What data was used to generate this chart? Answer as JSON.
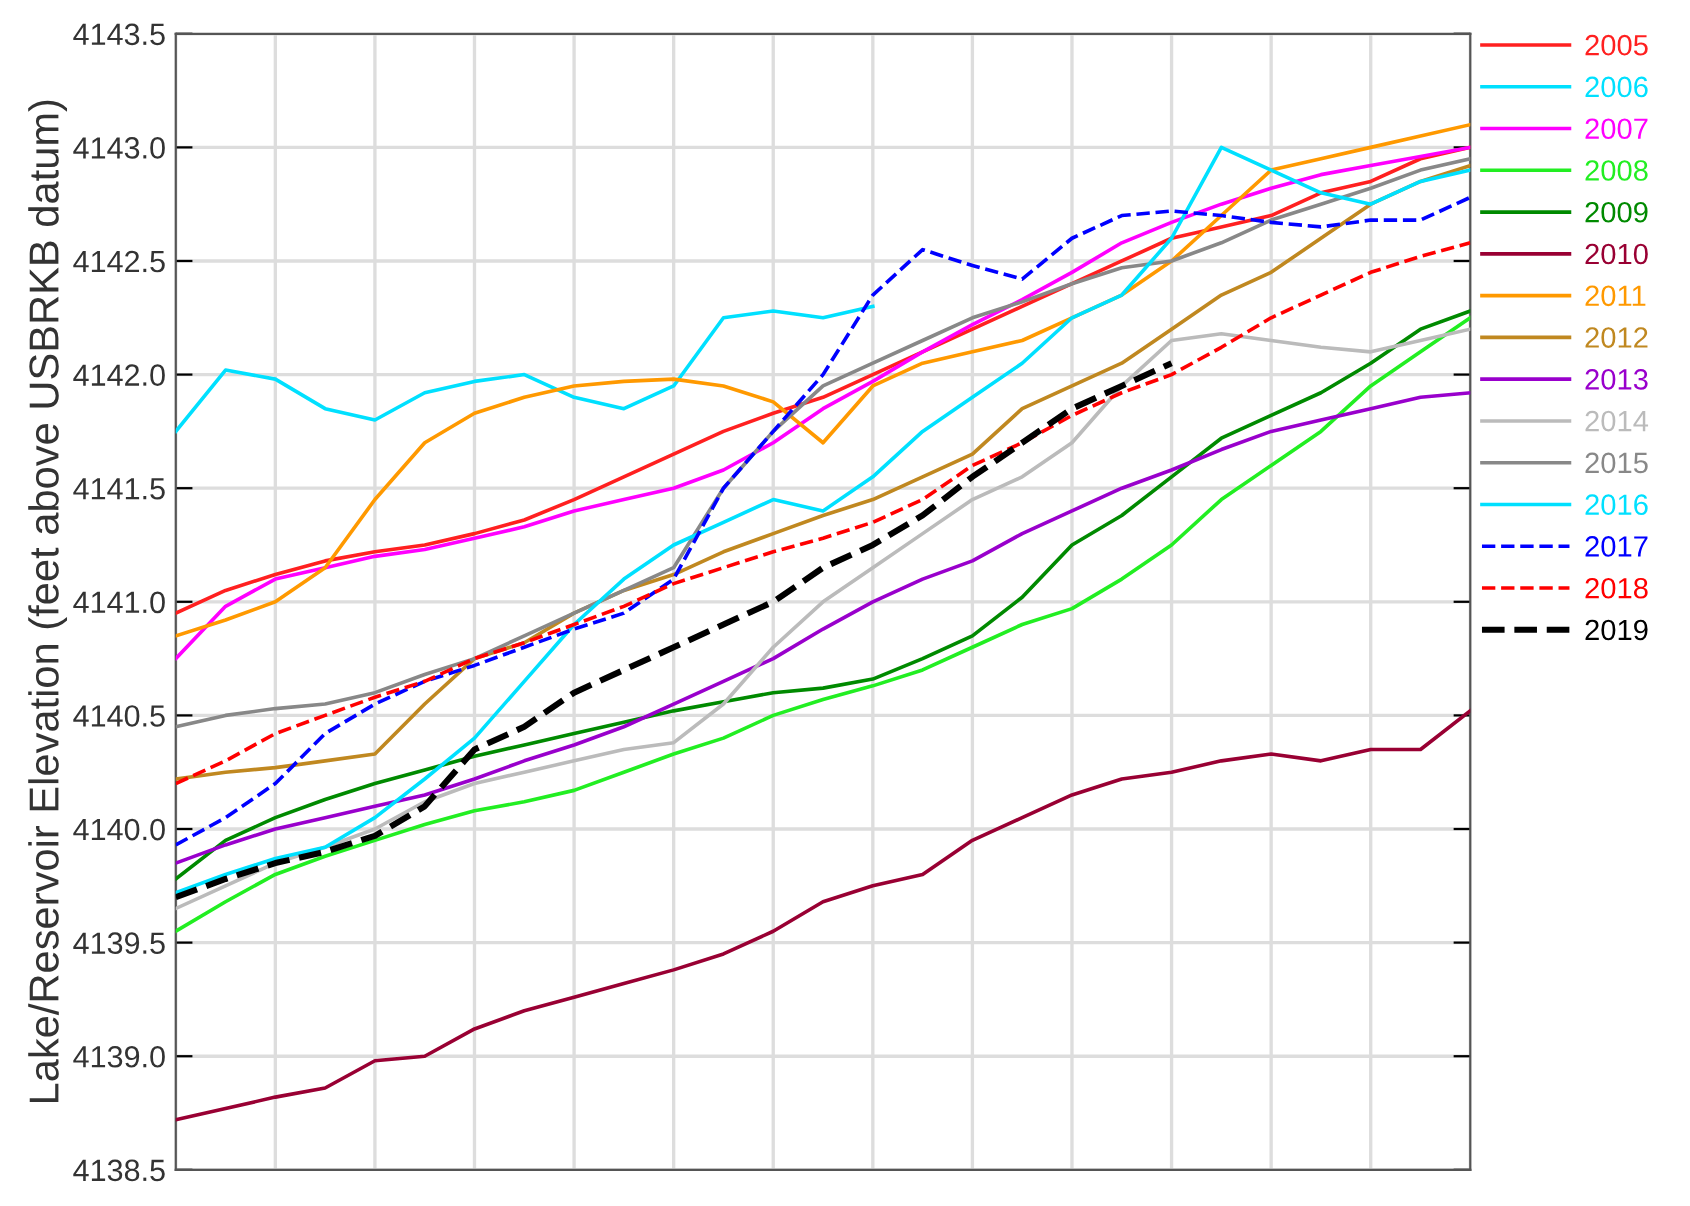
{
  "chart_data": {
    "type": "line",
    "ylabel": "Lake/Reservoir Elevation (feet above USBRKB datum)",
    "categories": [
      null,
      null,
      null,
      null,
      null,
      null,
      null,
      null,
      null,
      null,
      null,
      null,
      null,
      null,
      null,
      null,
      null,
      null,
      null,
      null,
      null,
      null,
      null,
      null,
      null,
      null,
      null
    ],
    "ylim": [
      4138.5,
      4143.5
    ],
    "yticks": [
      {
        "value": 4138.5,
        "label": "4138.5"
      },
      {
        "value": 4139,
        "label": "4139.0"
      },
      {
        "value": 4139.5,
        "label": "4139.5"
      },
      {
        "value": 4140,
        "label": "4140.0"
      },
      {
        "value": 4140.5,
        "label": "4140.5"
      },
      {
        "value": 4141,
        "label": "4141.0"
      },
      {
        "value": 4141.5,
        "label": "4141.5"
      },
      {
        "value": 4142,
        "label": "4142.0"
      },
      {
        "value": 4142.5,
        "label": "4142.5"
      },
      {
        "value": 4143,
        "label": "4143.0"
      },
      {
        "value": 4143.5,
        "label": "4143.5"
      }
    ],
    "grid": true,
    "legend": "right",
    "tick_labels": "y",
    "marker": "none",
    "series": [
      {
        "name": "2005",
        "color": "#ff2020",
        "line_style": "solid",
        "values": [
          4140.95,
          4141.05,
          4141.12,
          4141.18,
          4141.22,
          4141.25,
          4141.3,
          4141.36,
          4141.45,
          4141.55,
          4141.65,
          4141.75,
          4141.83,
          4141.9,
          4142.0,
          4142.1,
          4142.2,
          4142.3,
          4142.4,
          4142.5,
          4142.6,
          4142.65,
          4142.7,
          4142.8,
          4142.85,
          4142.95,
          4143.0
        ]
      },
      {
        "name": "2006",
        "color": "#00e0ff",
        "line_style": "solid",
        "values": [
          4141.75,
          4142.02,
          4141.98,
          4141.85,
          4141.8,
          4141.92,
          4141.97,
          4142.0,
          4141.9,
          4141.85,
          4141.95,
          4142.25,
          4142.28,
          4142.25,
          4142.3,
          null,
          null,
          null,
          null,
          null,
          null,
          null,
          null,
          null,
          null,
          null,
          null
        ]
      },
      {
        "name": "2007",
        "color": "#ff00ff",
        "line_style": "solid",
        "values": [
          4140.75,
          4140.98,
          4141.1,
          4141.15,
          4141.2,
          4141.23,
          4141.28,
          4141.33,
          4141.4,
          4141.45,
          4141.5,
          4141.58,
          4141.7,
          4141.85,
          4141.97,
          4142.1,
          4142.22,
          4142.33,
          4142.45,
          4142.58,
          4142.67,
          4142.75,
          4142.82,
          4142.88,
          4142.92,
          4142.96,
          4143.0
        ]
      },
      {
        "name": "2008",
        "color": "#22ee22",
        "line_style": "solid",
        "values": [
          4139.55,
          4139.68,
          4139.8,
          4139.88,
          4139.95,
          4140.02,
          4140.08,
          4140.12,
          4140.17,
          4140.25,
          4140.33,
          4140.4,
          4140.5,
          4140.57,
          4140.63,
          4140.7,
          4140.8,
          4140.9,
          4140.97,
          4141.1,
          4141.25,
          4141.45,
          4141.6,
          4141.75,
          4141.95,
          4142.1,
          4142.25
        ]
      },
      {
        "name": "2009",
        "color": "#008a00",
        "line_style": "solid",
        "values": [
          4139.78,
          4139.95,
          4140.05,
          4140.13,
          4140.2,
          4140.26,
          4140.32,
          4140.37,
          4140.42,
          4140.47,
          4140.52,
          4140.56,
          4140.6,
          4140.62,
          4140.66,
          4140.75,
          4140.85,
          4141.02,
          4141.25,
          4141.38,
          4141.55,
          4141.72,
          4141.82,
          4141.92,
          4142.05,
          4142.2,
          4142.28
        ]
      },
      {
        "name": "2010",
        "color": "#990033",
        "line_style": "solid",
        "values": [
          4138.72,
          4138.77,
          4138.82,
          4138.86,
          4138.98,
          4139.0,
          4139.12,
          4139.2,
          4139.26,
          4139.32,
          4139.38,
          4139.45,
          4139.55,
          4139.68,
          4139.75,
          4139.8,
          4139.95,
          4140.05,
          4140.15,
          4140.22,
          4140.25,
          4140.3,
          4140.33,
          4140.3,
          4140.35,
          4140.35,
          4140.52
        ]
      },
      {
        "name": "2011",
        "color": "#ff9900",
        "line_style": "solid",
        "values": [
          4140.85,
          4140.92,
          4141.0,
          4141.15,
          4141.45,
          4141.7,
          4141.83,
          4141.9,
          4141.95,
          4141.97,
          4141.98,
          4141.95,
          4141.88,
          4141.7,
          4141.95,
          4142.05,
          4142.1,
          4142.15,
          4142.25,
          4142.35,
          4142.5,
          4142.7,
          4142.9,
          4142.95,
          4143.0,
          4143.05,
          4143.1
        ]
      },
      {
        "name": "2012",
        "color": "#c08820",
        "line_style": "solid",
        "values": [
          4140.22,
          4140.25,
          4140.27,
          4140.3,
          4140.33,
          4140.55,
          4140.75,
          4140.82,
          4140.95,
          4141.05,
          4141.12,
          4141.22,
          4141.3,
          4141.38,
          4141.45,
          4141.55,
          4141.65,
          4141.85,
          4141.95,
          4142.05,
          4142.2,
          4142.35,
          4142.45,
          4142.6,
          4142.75,
          4142.85,
          4142.92
        ]
      },
      {
        "name": "2013",
        "color": "#9900cc",
        "line_style": "solid",
        "values": [
          4139.85,
          4139.93,
          4140.0,
          4140.05,
          4140.1,
          4140.15,
          4140.22,
          4140.3,
          4140.37,
          4140.45,
          4140.55,
          4140.65,
          4140.75,
          4140.88,
          4141.0,
          4141.1,
          4141.18,
          4141.3,
          4141.4,
          4141.5,
          4141.58,
          4141.67,
          4141.75,
          4141.8,
          4141.85,
          4141.9,
          4141.92
        ]
      },
      {
        "name": "2014",
        "color": "#bbbbbb",
        "line_style": "solid",
        "values": [
          4139.65,
          4139.75,
          4139.85,
          4139.92,
          4140.0,
          4140.12,
          4140.2,
          4140.25,
          4140.3,
          4140.35,
          4140.38,
          4140.55,
          4140.8,
          4141.0,
          4141.15,
          4141.3,
          4141.45,
          4141.55,
          4141.7,
          4141.95,
          4142.15,
          4142.18,
          4142.15,
          4142.12,
          4142.1,
          4142.15,
          4142.2
        ]
      },
      {
        "name": "2015",
        "color": "#888888",
        "line_style": "solid",
        "values": [
          4140.45,
          4140.5,
          4140.53,
          4140.55,
          4140.6,
          4140.68,
          4140.75,
          4140.85,
          4140.95,
          4141.05,
          4141.15,
          4141.5,
          4141.75,
          4141.95,
          4142.05,
          4142.15,
          4142.25,
          4142.32,
          4142.4,
          4142.47,
          4142.5,
          4142.58,
          4142.68,
          4142.75,
          4142.82,
          4142.9,
          4142.95
        ]
      },
      {
        "name": "2016",
        "color": "#00e0ff",
        "line_style": "solid",
        "values": [
          4139.72,
          4139.8,
          4139.87,
          4139.92,
          4140.05,
          4140.22,
          4140.4,
          4140.65,
          4140.9,
          4141.1,
          4141.25,
          4141.35,
          4141.45,
          4141.4,
          4141.55,
          4141.75,
          4141.9,
          4142.05,
          4142.25,
          4142.35,
          4142.6,
          4143.0,
          4142.9,
          4142.8,
          4142.75,
          4142.85,
          4142.9
        ]
      },
      {
        "name": "2017",
        "color": "#0000ff",
        "line_style": "dashed",
        "values": [
          4139.93,
          4140.05,
          4140.2,
          4140.42,
          4140.55,
          4140.65,
          4140.72,
          4140.8,
          4140.88,
          4140.95,
          4141.1,
          4141.5,
          4141.75,
          4142.0,
          4142.35,
          4142.55,
          4142.48,
          4142.42,
          4142.6,
          4142.7,
          4142.72,
          4142.7,
          4142.67,
          4142.65,
          4142.68,
          4142.68,
          4142.78
        ]
      },
      {
        "name": "2018",
        "color": "#ff0000",
        "line_style": "dashed",
        "values": [
          4140.2,
          4140.3,
          4140.42,
          4140.5,
          4140.58,
          4140.65,
          4140.75,
          4140.82,
          4140.9,
          4140.98,
          4141.08,
          4141.15,
          4141.22,
          4141.28,
          4141.35,
          4141.45,
          4141.6,
          4141.7,
          4141.82,
          4141.92,
          4142.0,
          4142.12,
          4142.25,
          4142.35,
          4142.45,
          4142.52,
          4142.58
        ]
      },
      {
        "name": "2019",
        "color": "#000000",
        "line_style": "dashed",
        "values": [
          4139.7,
          4139.78,
          4139.85,
          4139.9,
          4139.97,
          4140.1,
          4140.35,
          4140.45,
          4140.6,
          4140.7,
          4140.8,
          4140.9,
          4141.0,
          4141.15,
          4141.25,
          4141.38,
          4141.55,
          4141.7,
          4141.85,
          4141.95,
          4142.05,
          null,
          null,
          null,
          null,
          null,
          null
        ]
      }
    ]
  }
}
